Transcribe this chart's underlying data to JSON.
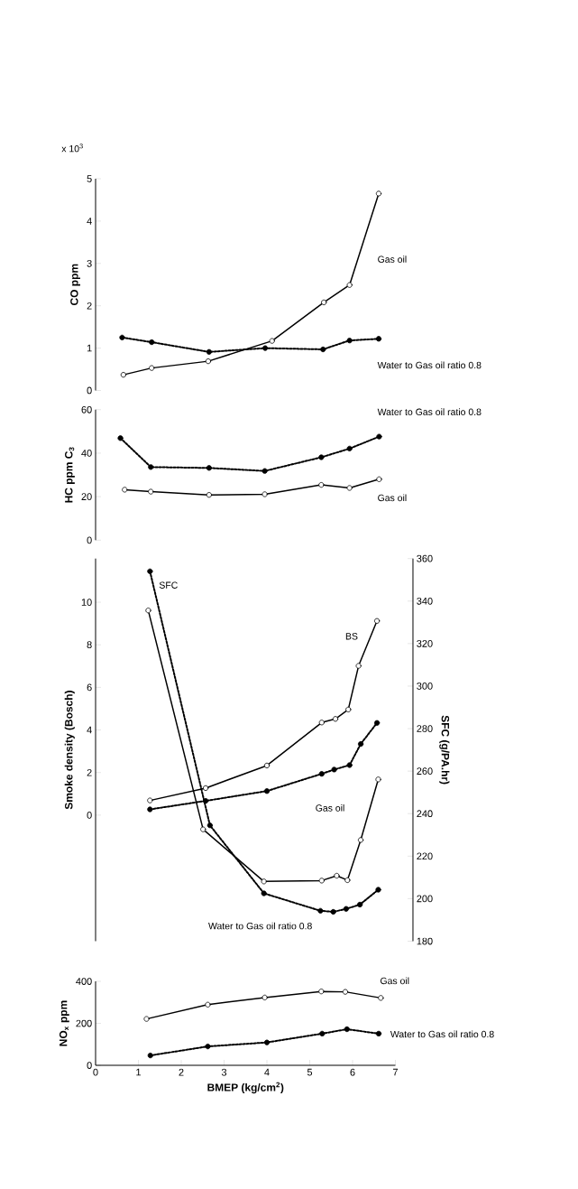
{
  "chart_data": [
    {
      "type": "line",
      "ylabel": "CO  ppm",
      "xlim": [
        0,
        7
      ],
      "ylim": [
        0,
        5
      ],
      "yticks": [
        0,
        1,
        2,
        3,
        4,
        5
      ],
      "tick_labels": "y",
      "marker": "circle",
      "series": [
        {
          "color": "#000000",
          "line_style": "solid",
          "x": [
            0.65,
            1.31,
            2.63,
            4.12,
            5.33,
            5.93,
            6.61
          ],
          "values": [
            0.37,
            0.53,
            0.69,
            1.17,
            2.08,
            2.49,
            4.65
          ]
        },
        {
          "color": "#000000",
          "line_style": "dashed",
          "x": [
            0.62,
            1.31,
            2.65,
            3.96,
            5.31,
            5.93,
            6.61
          ],
          "values": [
            1.25,
            1.14,
            0.91,
            1.0,
            0.97,
            1.18,
            1.22
          ]
        }
      ],
      "annotations": [
        "x 10$^{3}$",
        "Gas oil",
        "Water to Gas oil ratio 0.8"
      ]
    },
    {
      "type": "line",
      "ylabel": "HC ppm C$_{3}$",
      "xlim": [
        0,
        7
      ],
      "ylim": [
        0,
        60
      ],
      "yticks": [
        0,
        20,
        40,
        60
      ],
      "tick_labels": "y",
      "marker": "circle",
      "series": [
        {
          "color": "#000000",
          "line_style": "solid",
          "x": [
            0.68,
            1.29,
            2.65,
            3.95,
            5.27,
            5.93,
            6.62
          ],
          "values": [
            23.2,
            22.3,
            20.8,
            21.1,
            25.4,
            24.0,
            28.0
          ]
        },
        {
          "color": "#000000",
          "line_style": "dashed",
          "x": [
            0.58,
            1.29,
            2.65,
            3.95,
            5.27,
            5.93,
            6.62
          ],
          "values": [
            46.9,
            33.6,
            33.2,
            31.8,
            38.1,
            42.1,
            47.6
          ]
        }
      ],
      "annotations": [
        "Water to Gas oil ratio 0.8",
        "Gas oil"
      ]
    },
    {
      "type": "line",
      "ylabel": "Smoke density (Bosch)",
      "y2label": "SFC  (g/PA.hr)",
      "xlim": [
        0,
        7
      ],
      "ylim": [
        -5.92,
        12.05
      ],
      "yticks": [
        0,
        2,
        4,
        6,
        8,
        10
      ],
      "y2lim": [
        180,
        360
      ],
      "y2ticks": [
        180,
        200,
        220,
        240,
        260,
        280,
        300,
        320,
        340,
        360
      ],
      "tick_labels": "y",
      "marker": "circle",
      "series": [
        {
          "color": "#000000",
          "line_style": "solid",
          "x": [
            1.27,
            2.57,
            4.0,
            5.28,
            5.6,
            5.9,
            6.14,
            6.57
          ],
          "values": [
            0.69,
            1.27,
            2.33,
            4.35,
            4.52,
            4.96,
            7.01,
            9.12
          ]
        },
        {
          "color": "#000000",
          "line_style": "dashed",
          "x": [
            1.27,
            2.57,
            4.0,
            5.28,
            5.57,
            5.93,
            6.19,
            6.57
          ],
          "values": [
            0.27,
            0.67,
            1.13,
            1.94,
            2.14,
            2.35,
            3.34,
            4.33
          ]
        },
        {
          "color": "#000000",
          "line_style": "solid",
          "axis": "y2",
          "x": [
            1.23,
            2.51,
            3.93,
            5.28,
            5.63,
            5.88,
            6.19,
            6.6
          ],
          "values": [
            335.6,
            232.6,
            208.1,
            208.5,
            210.8,
            208.7,
            227.6,
            256.1
          ]
        },
        {
          "color": "#000000",
          "line_style": "dashed",
          "axis": "y2",
          "x": [
            1.27,
            2.67,
            3.93,
            5.25,
            5.55,
            5.85,
            6.17,
            6.6
          ],
          "values": [
            354.0,
            234.5,
            202.5,
            194.3,
            193.8,
            195.2,
            197.2,
            204.2
          ]
        }
      ],
      "annotations": [
        "SFC",
        "BS",
        "Gas oil",
        "Water to Gas oil ratio 0.8"
      ]
    },
    {
      "type": "line",
      "xlabel": "BMEP (kg/cm$^{2}$)",
      "ylabel": "NO$_{x}$ ppm",
      "xlim": [
        0,
        7
      ],
      "ylim": [
        0,
        400
      ],
      "xticks": [
        0,
        1,
        2,
        3,
        4,
        5,
        6,
        7
      ],
      "yticks": [
        0,
        200,
        400
      ],
      "marker": "circle",
      "series": [
        {
          "color": "#000000",
          "line_style": "solid",
          "x": [
            1.19,
            2.62,
            3.95,
            5.27,
            5.83,
            6.66
          ],
          "values": [
            221,
            289,
            323,
            352,
            350,
            321
          ]
        },
        {
          "color": "#000000",
          "line_style": "dashed",
          "x": [
            1.28,
            2.62,
            4.0,
            5.29,
            5.87,
            6.61
          ],
          "values": [
            47,
            90,
            109,
            151,
            172,
            151
          ]
        }
      ],
      "annotations": [
        "Gas oil",
        "Water to Gas oil ratio 0.8"
      ]
    }
  ]
}
